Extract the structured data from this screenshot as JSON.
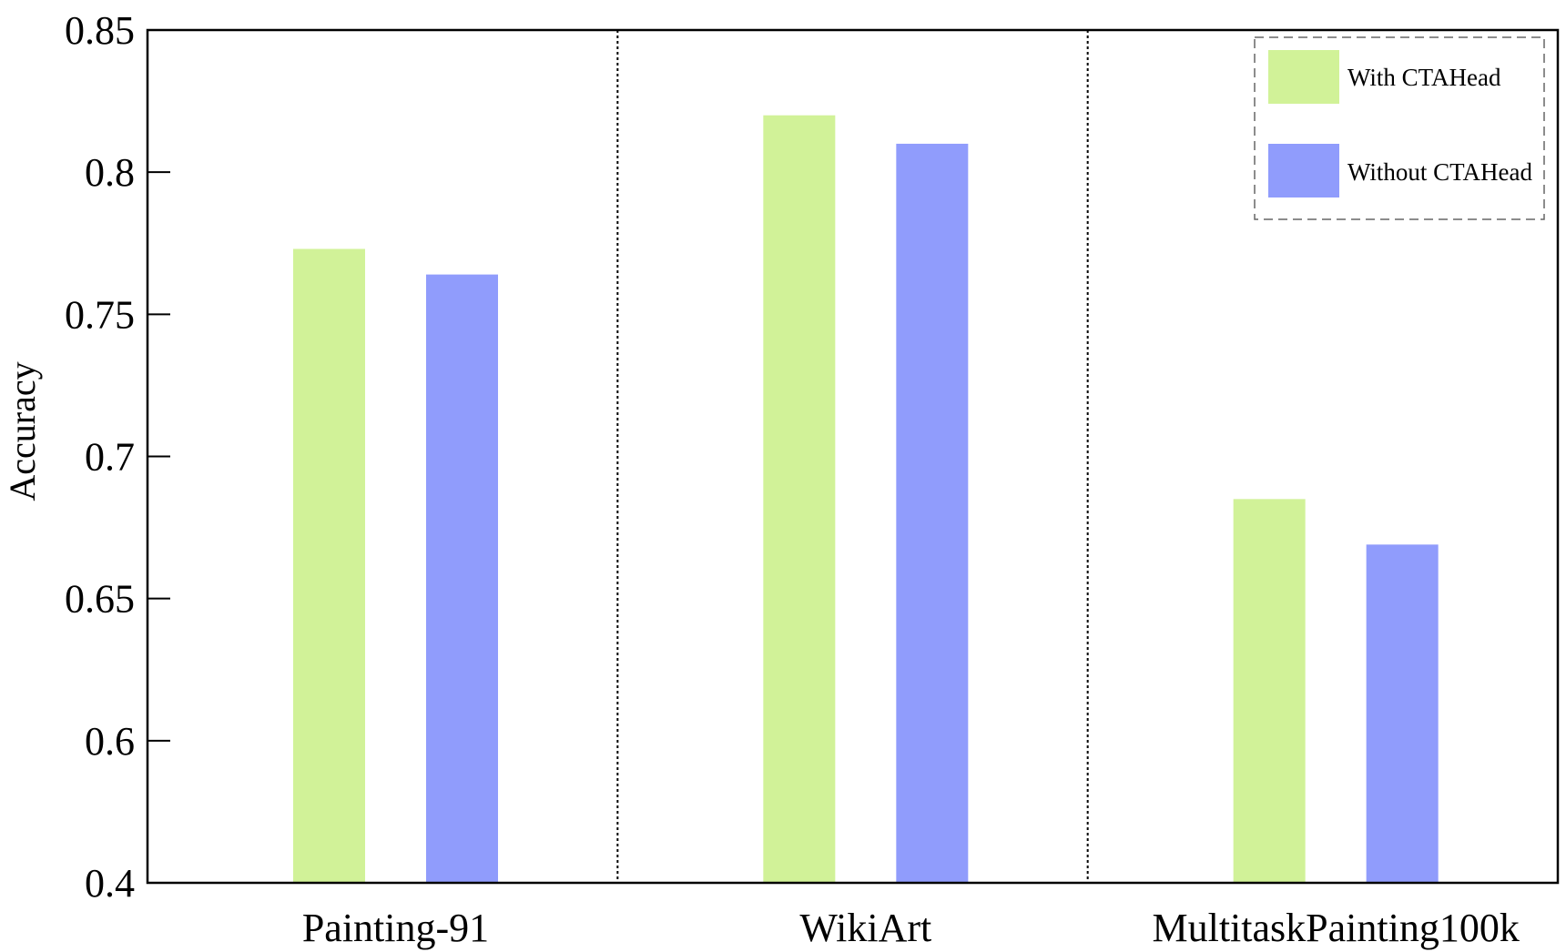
{
  "chart_data": {
    "type": "bar",
    "title": "",
    "xlabel": "",
    "ylabel": "Accuracy",
    "categories": [
      "Painting-91",
      "WikiArt",
      "MultitaskPainting100k"
    ],
    "series": [
      {
        "name": "With CTAHead",
        "color": "#d1f298",
        "values": [
          0.773,
          0.82,
          0.685
        ]
      },
      {
        "name": "Without CTAHead",
        "color": "#909cfc",
        "values": [
          0.764,
          0.81,
          0.669
        ]
      }
    ],
    "ylim": [
      0.4,
      0.85
    ],
    "yticks": [
      0.4,
      0.6,
      0.65,
      0.7,
      0.75,
      0.8,
      0.85
    ],
    "ytick_labels": [
      "0.4",
      "0.6",
      "0.65",
      "0.7",
      "0.75",
      "0.8",
      "0.85"
    ],
    "axis_break": "0.4 to 0.6 compressed",
    "grid": false,
    "group_separators": "dotted",
    "legend_position": "top-right"
  }
}
